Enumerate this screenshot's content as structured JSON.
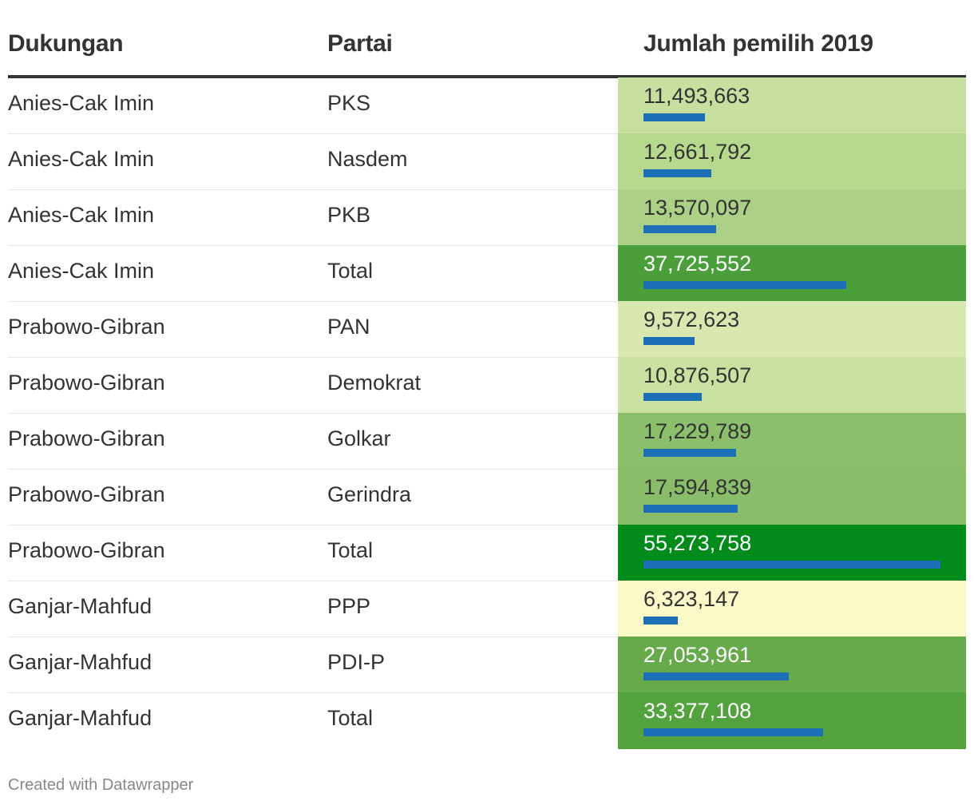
{
  "headers": {
    "dukungan": "Dukungan",
    "partai": "Partai",
    "jumlah": "Jumlah pemilih 2019"
  },
  "chart_data": {
    "type": "table",
    "columns": [
      "Dukungan",
      "Partai",
      "Jumlah pemilih 2019"
    ],
    "bar_color": "#1d6fb7",
    "max_value": 55273758,
    "rows": [
      {
        "dukungan": "Anies-Cak Imin",
        "partai": "PKS",
        "value": 11493663,
        "label": "11,493,663",
        "bg": "#c7df9f",
        "text_color": "#333333"
      },
      {
        "dukungan": "Anies-Cak Imin",
        "partai": "Nasdem",
        "value": 12661792,
        "label": "12,661,792",
        "bg": "#b7d98e",
        "text_color": "#333333"
      },
      {
        "dukungan": "Anies-Cak Imin",
        "partai": "PKB",
        "value": 13570097,
        "label": "13,570,097",
        "bg": "#acd186",
        "text_color": "#333333"
      },
      {
        "dukungan": "Anies-Cak Imin",
        "partai": "Total",
        "value": 37725552,
        "label": "37,725,552",
        "bg": "#4a9f3a",
        "text_color": "#ffffff"
      },
      {
        "dukungan": "Prabowo-Gibran",
        "partai": "PAN",
        "value": 9572623,
        "label": "9,572,623",
        "bg": "#d9e8b0",
        "text_color": "#333333"
      },
      {
        "dukungan": "Prabowo-Gibran",
        "partai": "Demokrat",
        "value": 10876507,
        "label": "10,876,507",
        "bg": "#cbe1a2",
        "text_color": "#333333"
      },
      {
        "dukungan": "Prabowo-Gibran",
        "partai": "Golkar",
        "value": 17229789,
        "label": "17,229,789",
        "bg": "#8cbf6b",
        "text_color": "#333333"
      },
      {
        "dukungan": "Prabowo-Gibran",
        "partai": "Gerindra",
        "value": 17594839,
        "label": "17,594,839",
        "bg": "#89bd69",
        "text_color": "#333333"
      },
      {
        "dukungan": "Prabowo-Gibran",
        "partai": "Total",
        "value": 55273758,
        "label": "55,273,758",
        "bg": "#008b1a",
        "text_color": "#ffffff"
      },
      {
        "dukungan": "Ganjar-Mahfud",
        "partai": "PPP",
        "value": 6323147,
        "label": "6,323,147",
        "bg": "#fcf9c8",
        "text_color": "#333333"
      },
      {
        "dukungan": "Ganjar-Mahfud",
        "partai": "PDI-P",
        "value": 27053961,
        "label": "27,053,961",
        "bg": "#66aa4b",
        "text_color": "#ffffff"
      },
      {
        "dukungan": "Ganjar-Mahfud",
        "partai": "Total",
        "value": 33377108,
        "label": "33,377,108",
        "bg": "#52a23e",
        "text_color": "#ffffff"
      }
    ]
  },
  "footer": "Created with Datawrapper"
}
